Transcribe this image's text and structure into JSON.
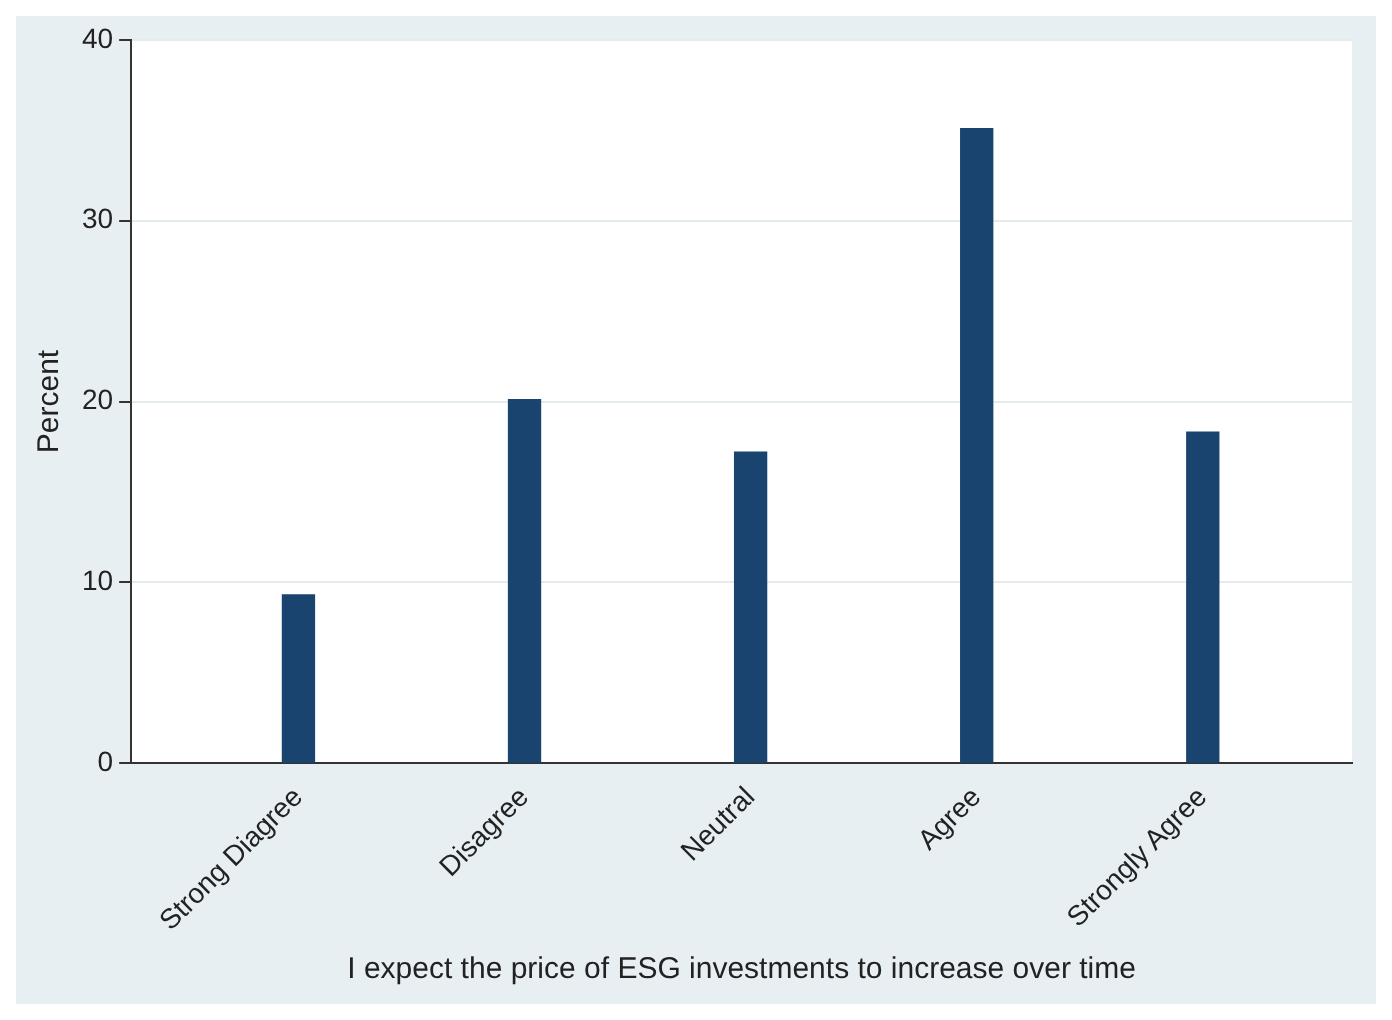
{
  "chart_data": {
    "type": "bar",
    "xlabel": "I expect the price of ESG investments to increase over time",
    "ylabel": "Percent",
    "categories": [
      "Strong Diagree",
      "Disagree",
      "Neutral",
      "Agree",
      "Strongly Agree"
    ],
    "values": [
      9.3,
      20.1,
      17.2,
      35.1,
      18.3
    ],
    "color": "#1a4470",
    "ylim": [
      0,
      40
    ],
    "yticks": [
      0,
      10,
      20,
      30,
      40
    ],
    "grid": "y"
  }
}
